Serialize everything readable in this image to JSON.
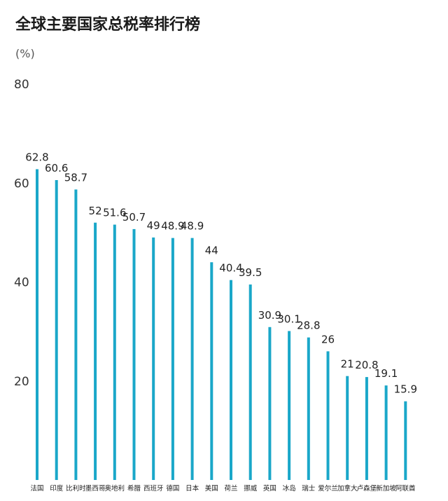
{
  "chart_data": {
    "type": "bar",
    "title": "全球主要国家总税率排行榜",
    "ylabel": "(%)",
    "ylim": [
      0,
      80
    ],
    "yticks": [
      20,
      40,
      60,
      80
    ],
    "grid": false,
    "bar_color": "#1aa7c9",
    "categories": [
      "法国",
      "印度",
      "比利时",
      "墨西哥",
      "奥地利",
      "希腊",
      "西班牙",
      "德国",
      "日本",
      "美国",
      "荷兰",
      "挪威",
      "英国",
      "冰岛",
      "瑞士",
      "爱尔兰",
      "加拿大",
      "卢森堡",
      "新加坡",
      "阿联酋"
    ],
    "values": [
      62.8,
      60.6,
      58.7,
      52,
      51.6,
      50.7,
      49,
      48.9,
      48.9,
      44,
      40.4,
      39.5,
      30.9,
      30.1,
      28.8,
      26,
      21,
      20.8,
      19.1,
      15.9
    ],
    "value_labels": [
      "62.8",
      "60.6",
      "58.7",
      "52",
      "51.6",
      "50.7",
      "49",
      "48.9",
      "48.9",
      "44",
      "40.4",
      "39.5",
      "30.9",
      "30.1",
      "28.8",
      "26",
      "21",
      "20.8",
      "19.1",
      "15.9"
    ]
  }
}
